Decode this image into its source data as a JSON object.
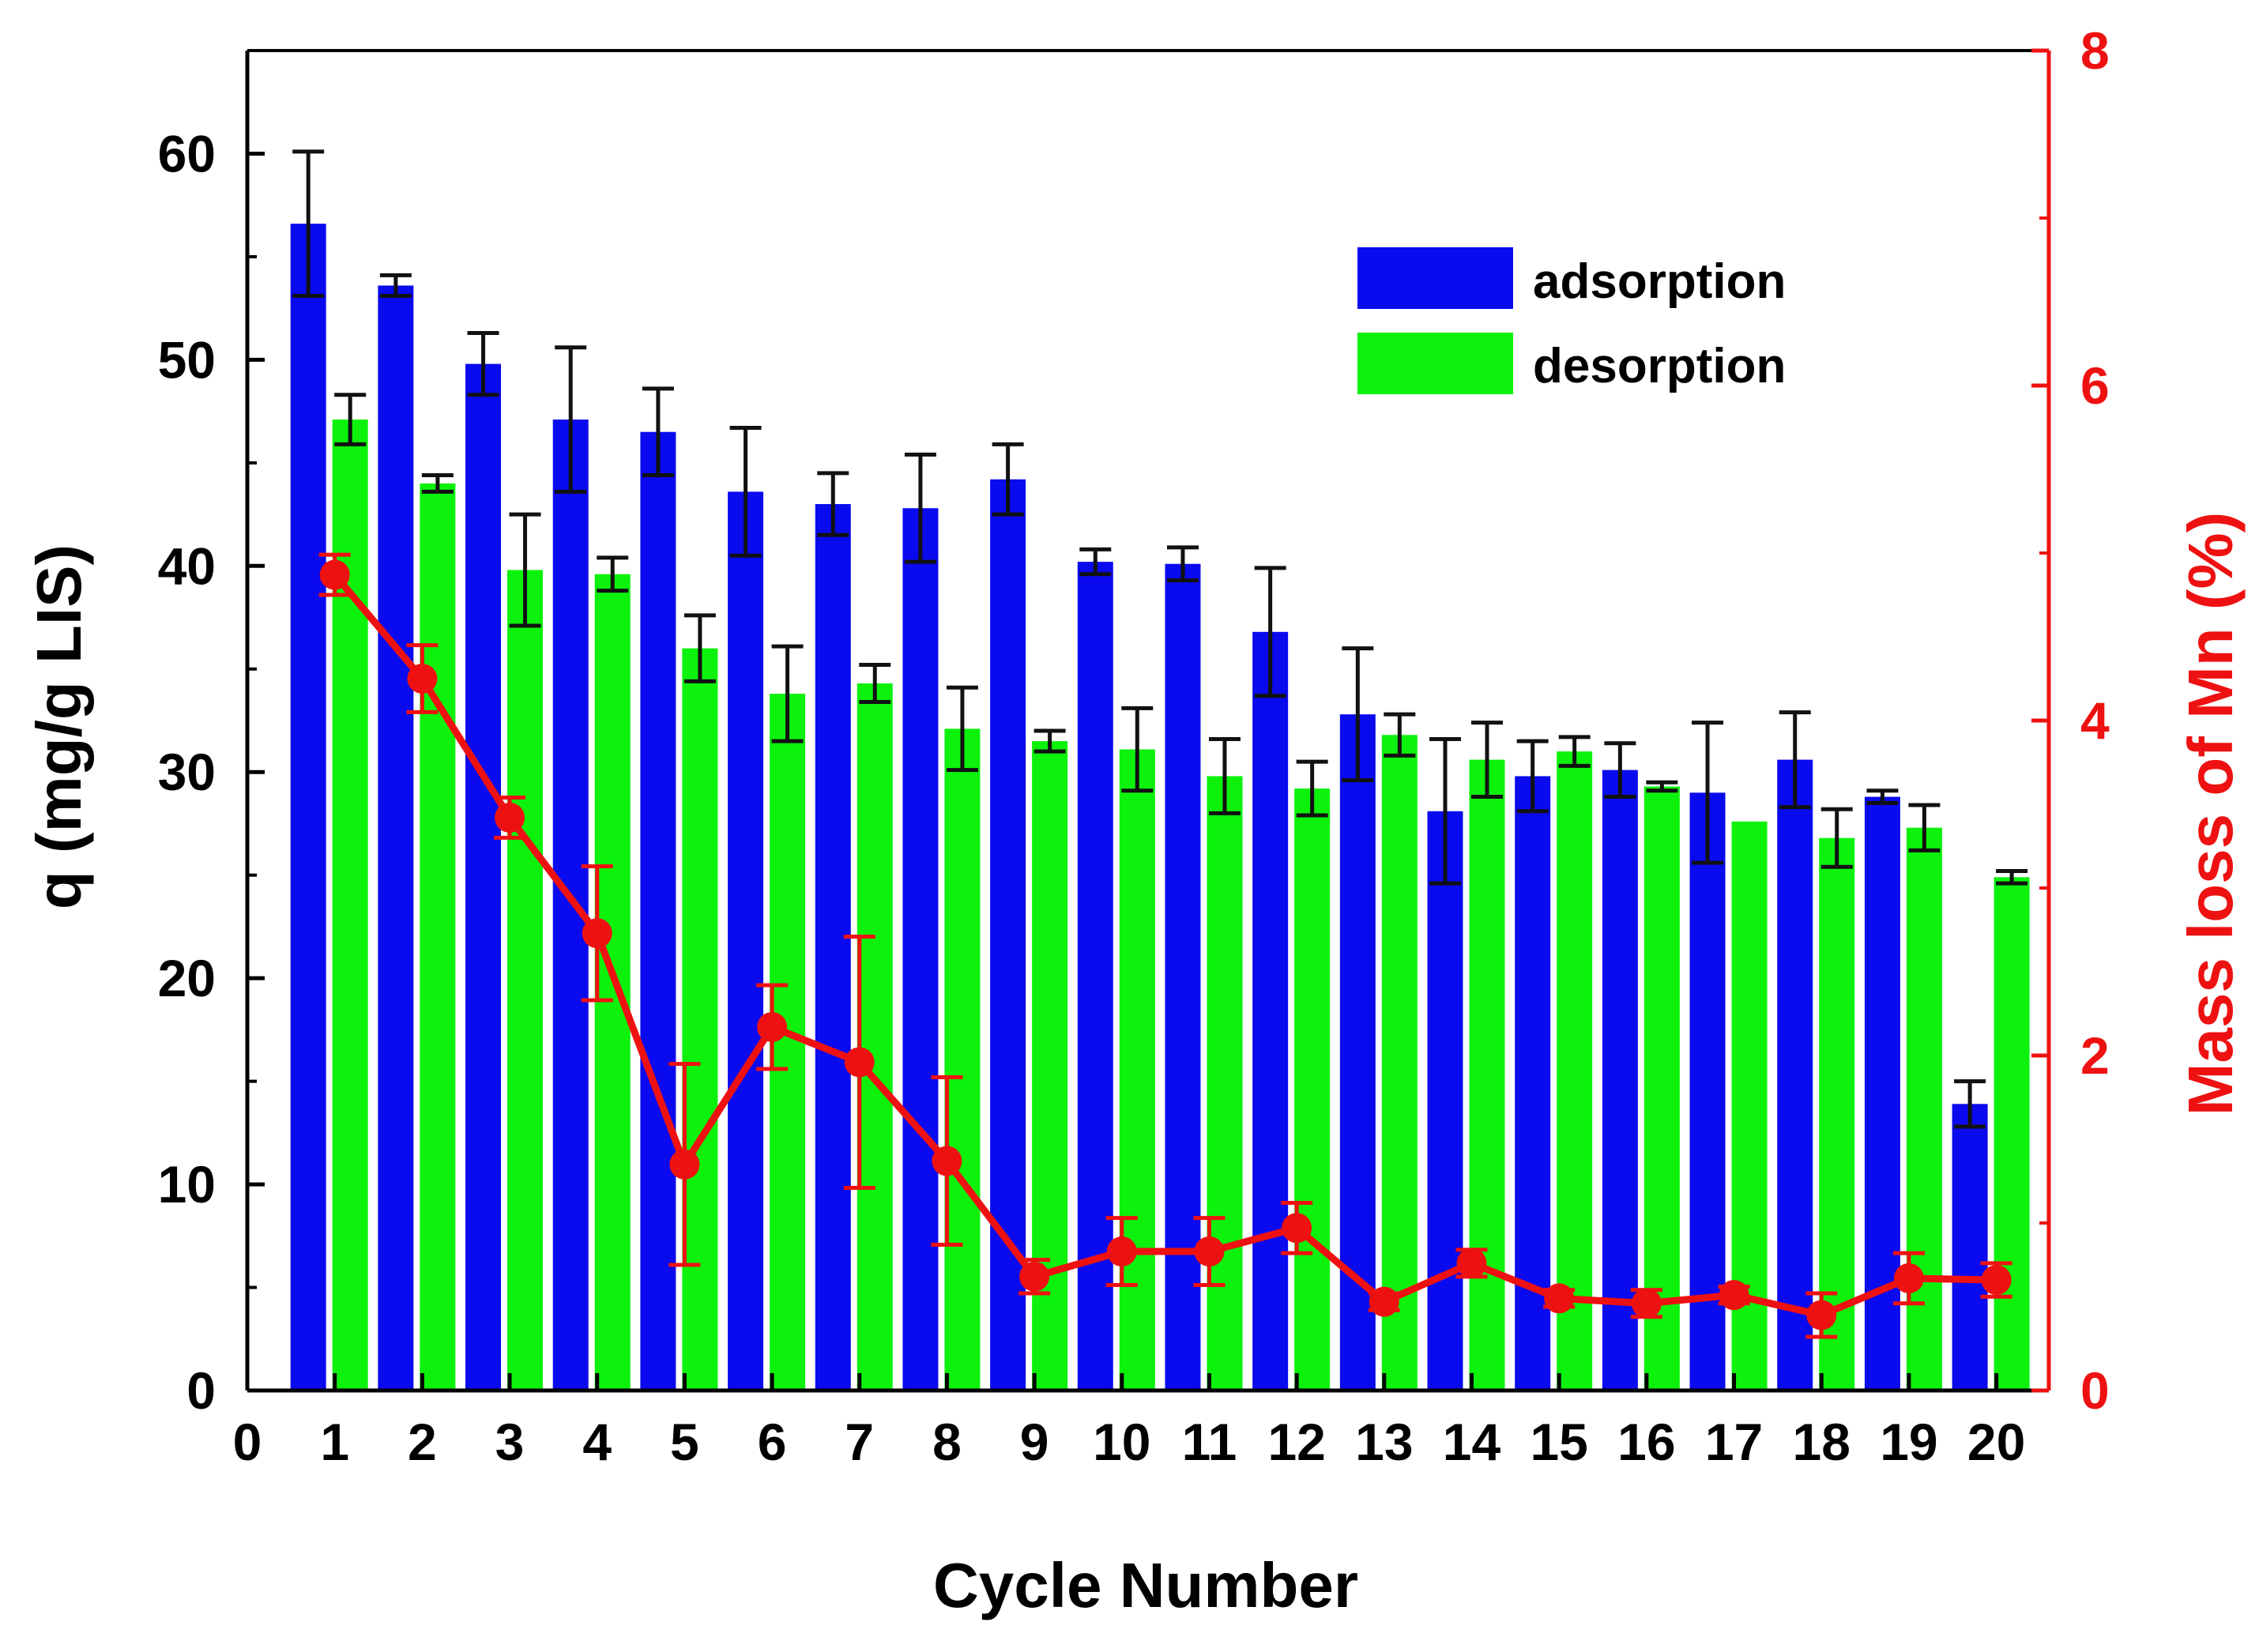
{
  "chart_data": {
    "type": "bar",
    "xlabel": "Cycle Number",
    "ylabel": "q (mg/g LIS)",
    "y2label": "Mass loss of Mn (%)",
    "categories": [
      "1",
      "2",
      "3",
      "4",
      "5",
      "6",
      "7",
      "8",
      "9",
      "10",
      "11",
      "12",
      "13",
      "14",
      "15",
      "16",
      "17",
      "18",
      "19",
      "20"
    ],
    "xlim": [
      0,
      20.6
    ],
    "x_ticks": [
      "0",
      "1",
      "2",
      "3",
      "4",
      "5",
      "6",
      "7",
      "8",
      "9",
      "10",
      "11",
      "12",
      "13",
      "14",
      "15",
      "16",
      "17",
      "18",
      "19",
      "20"
    ],
    "ylim": [
      0,
      65
    ],
    "y_ticks": [
      "0",
      "10",
      "20",
      "30",
      "40",
      "50",
      "60"
    ],
    "y2lim": [
      0,
      8
    ],
    "y2_ticks": [
      "0",
      "2",
      "4",
      "6",
      "8"
    ],
    "grid": false,
    "legend_position": "top-right",
    "colors": {
      "adsorption": "#0a0aee",
      "desorption": "#0cf20c",
      "mass_loss": "#ee1111",
      "axis": "#000000",
      "right_axis": "#ee1111"
    },
    "series": [
      {
        "name": "adsorption",
        "axis": "left",
        "kind": "bar",
        "values": [
          56.6,
          53.6,
          49.8,
          47.1,
          46.5,
          43.6,
          43.0,
          42.8,
          44.2,
          40.2,
          40.1,
          36.8,
          32.8,
          28.1,
          29.8,
          30.1,
          29.0,
          30.6,
          28.8,
          13.9
        ],
        "errors": [
          3.5,
          0.5,
          1.5,
          3.5,
          2.1,
          3.1,
          1.5,
          2.6,
          1.7,
          0.6,
          0.8,
          3.1,
          3.2,
          3.5,
          1.7,
          1.3,
          3.4,
          2.3,
          0.3,
          1.1
        ]
      },
      {
        "name": "desorption",
        "axis": "left",
        "kind": "bar",
        "values": [
          47.1,
          44.0,
          39.8,
          39.6,
          36.0,
          33.8,
          34.3,
          32.1,
          31.5,
          31.1,
          29.8,
          29.2,
          31.8,
          30.6,
          31.0,
          29.3,
          27.6,
          26.8,
          27.3,
          24.9
        ],
        "errors": [
          1.2,
          0.4,
          2.7,
          0.8,
          1.6,
          2.3,
          0.9,
          2.0,
          0.5,
          2.0,
          1.8,
          1.3,
          1.0,
          1.8,
          0.7,
          0.2,
          0.0,
          1.4,
          1.1,
          0.3
        ]
      },
      {
        "name": "Mass loss of Mn",
        "axis": "right",
        "kind": "line",
        "values": [
          4.87,
          4.25,
          3.42,
          2.73,
          1.35,
          2.17,
          1.96,
          1.37,
          0.68,
          0.83,
          0.83,
          0.97,
          0.53,
          0.76,
          0.55,
          0.52,
          0.57,
          0.45,
          0.67,
          0.66
        ],
        "errors": [
          0.12,
          0.2,
          0.12,
          0.4,
          0.6,
          0.25,
          0.75,
          0.5,
          0.1,
          0.2,
          0.2,
          0.15,
          0.05,
          0.08,
          0.05,
          0.08,
          0.05,
          0.13,
          0.15,
          0.1
        ]
      }
    ]
  }
}
